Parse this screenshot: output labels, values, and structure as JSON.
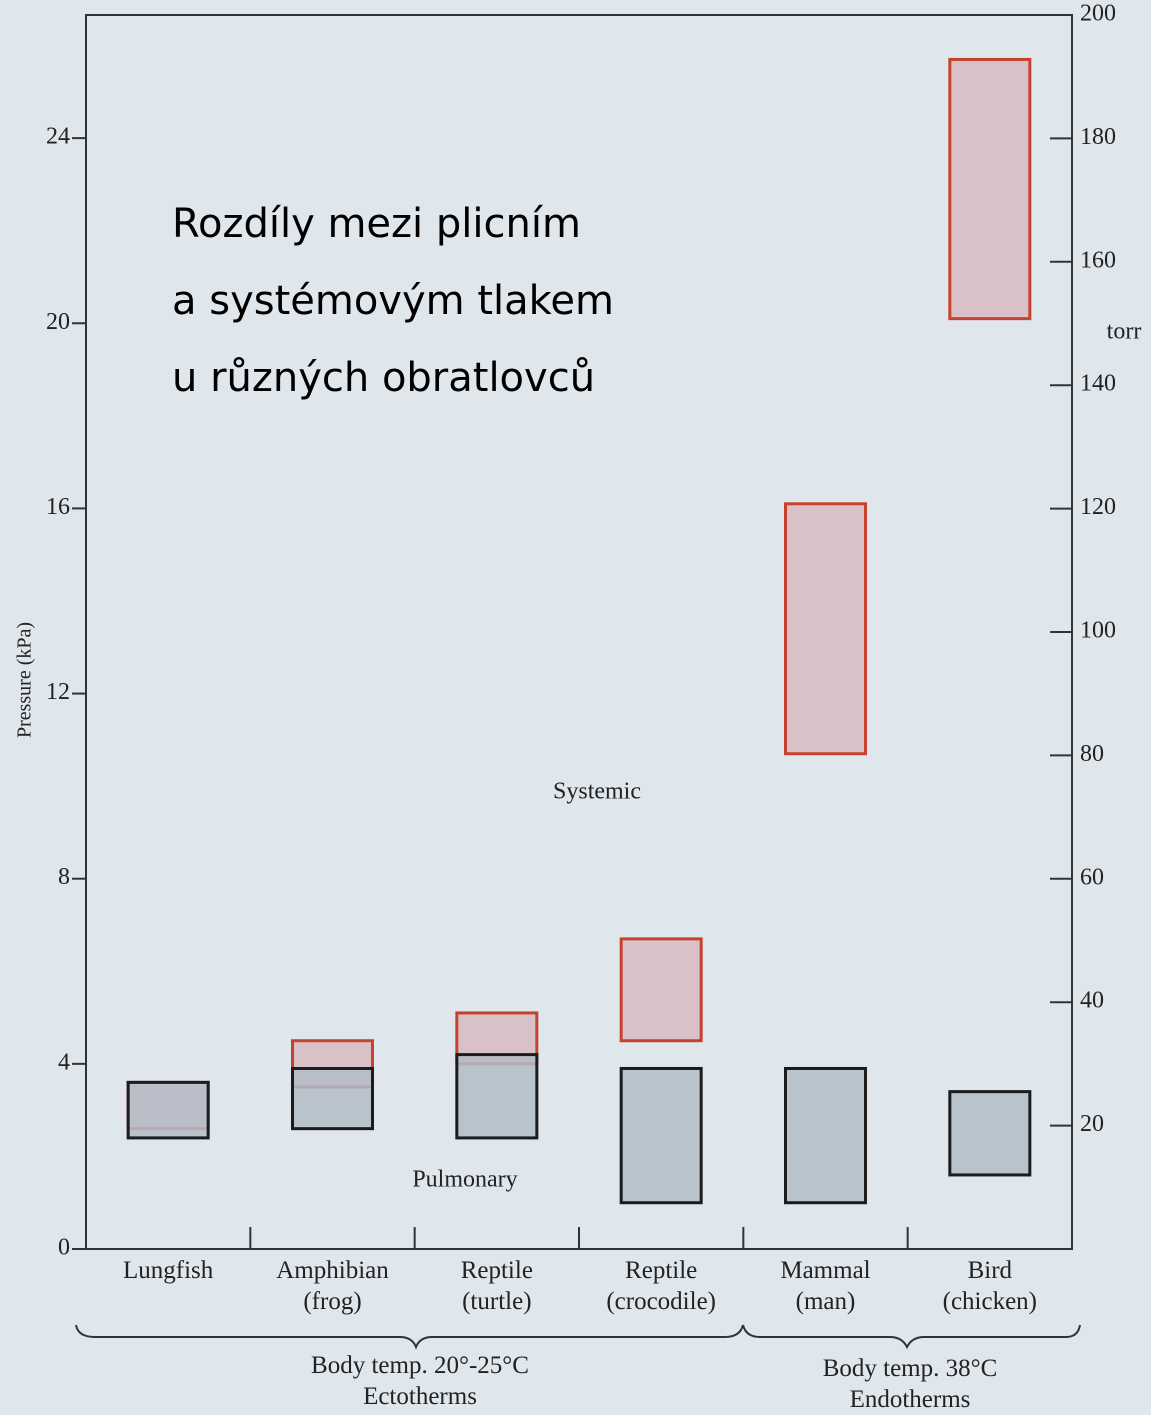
{
  "chart_data": {
    "type": "range-bar",
    "title": "Rozdíly mezi plicním\na systémovým tlakem\nu různých obratlovců",
    "y_label": "Pressure (kPa)",
    "y2_label": "torr",
    "categories": [
      "Lungfish",
      "Amphibian\n(frog)",
      "Reptile\n(turtle)",
      "Reptile\n(crocodile)",
      "Mammal\n(man)",
      "Bird\n(chicken)"
    ],
    "groups": [
      "Body temp. 20°-25°C\nEctotherms",
      "Body temp. 38°C\nEndotherms"
    ],
    "series": [
      {
        "name": "Systemic",
        "color": "#c8412e",
        "fill": "#d8c2c8",
        "low": [
          2.6,
          3.5,
          4.0,
          4.5,
          10.7,
          20.1
        ],
        "high": [
          3.6,
          4.5,
          5.1,
          6.7,
          16.1,
          25.7
        ]
      },
      {
        "name": "Pulmonary",
        "color": "#1c1c1c",
        "fill": "#b3bcc7",
        "low": [
          2.4,
          2.6,
          2.4,
          1.0,
          1.0,
          1.6
        ],
        "high": [
          3.6,
          3.9,
          4.2,
          3.9,
          3.9,
          3.4
        ]
      }
    ],
    "ylim": [
      0,
      26.66
    ],
    "yticks": [
      0,
      4,
      8,
      12,
      16,
      20,
      24
    ],
    "y2lim": [
      0,
      200
    ],
    "y2ticks": [
      20,
      40,
      60,
      80,
      100,
      120,
      140,
      160,
      180,
      200
    ]
  }
}
